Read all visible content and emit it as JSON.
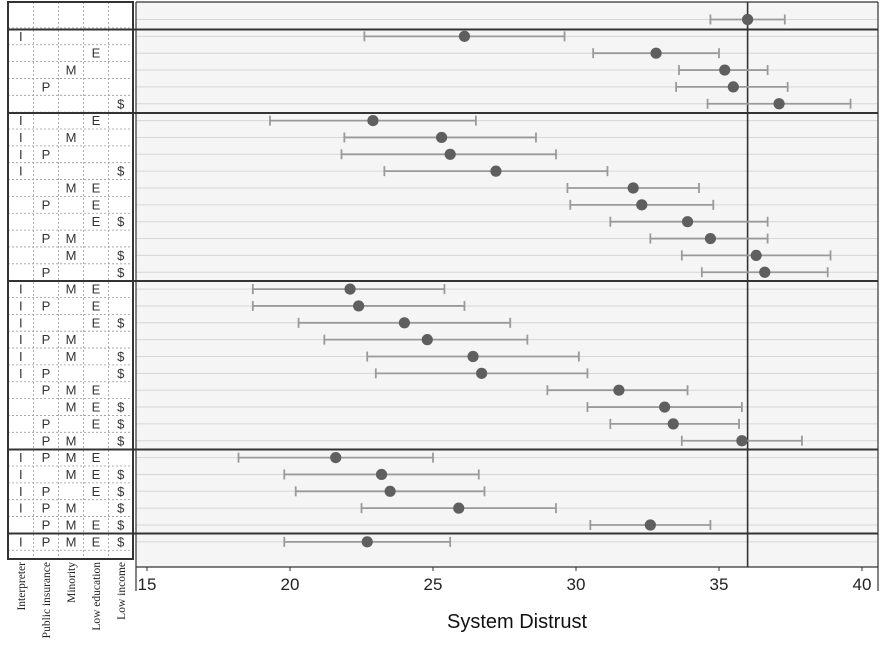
{
  "chart_data": {
    "type": "scatter",
    "subtype": "forest-plot-with-error-bars",
    "xlabel": "System Distrust",
    "xlim": [
      14.5,
      40.5
    ],
    "xticks": [
      15,
      20,
      25,
      30,
      35,
      40
    ],
    "reference_line": 36,
    "grid": "horizontal lines per row",
    "factor_columns": [
      {
        "key": "I",
        "label": "Interpreter"
      },
      {
        "key": "P",
        "label": "Public insurance"
      },
      {
        "key": "M",
        "label": "Minority"
      },
      {
        "key": "E",
        "label": "Low education"
      },
      {
        "key": "$",
        "label": "Low income"
      }
    ],
    "groups": [
      {
        "rows": [
          {
            "factors": [],
            "mean": 36.0,
            "lo": 34.7,
            "hi": 37.3
          }
        ]
      },
      {
        "rows": [
          {
            "factors": [
              "I"
            ],
            "mean": 26.1,
            "lo": 22.6,
            "hi": 29.6
          },
          {
            "factors": [
              "E"
            ],
            "mean": 32.8,
            "lo": 30.6,
            "hi": 35.0
          },
          {
            "factors": [
              "M"
            ],
            "mean": 35.2,
            "lo": 33.6,
            "hi": 36.7
          },
          {
            "factors": [
              "P"
            ],
            "mean": 35.5,
            "lo": 33.5,
            "hi": 37.4
          },
          {
            "factors": [
              "$"
            ],
            "mean": 37.1,
            "lo": 34.6,
            "hi": 39.6
          }
        ]
      },
      {
        "rows": [
          {
            "factors": [
              "I",
              "E"
            ],
            "mean": 22.9,
            "lo": 19.3,
            "hi": 26.5
          },
          {
            "factors": [
              "I",
              "M"
            ],
            "mean": 25.3,
            "lo": 21.9,
            "hi": 28.6
          },
          {
            "factors": [
              "I",
              "P"
            ],
            "mean": 25.6,
            "lo": 21.8,
            "hi": 29.3
          },
          {
            "factors": [
              "I",
              "$"
            ],
            "mean": 27.2,
            "lo": 23.3,
            "hi": 31.1
          },
          {
            "factors": [
              "M",
              "E"
            ],
            "mean": 32.0,
            "lo": 29.7,
            "hi": 34.3
          },
          {
            "factors": [
              "P",
              "E"
            ],
            "mean": 32.3,
            "lo": 29.8,
            "hi": 34.8
          },
          {
            "factors": [
              "E",
              "$"
            ],
            "mean": 33.9,
            "lo": 31.2,
            "hi": 36.7
          },
          {
            "factors": [
              "P",
              "M"
            ],
            "mean": 34.7,
            "lo": 32.6,
            "hi": 36.7
          },
          {
            "factors": [
              "M",
              "$"
            ],
            "mean": 36.3,
            "lo": 33.7,
            "hi": 38.9
          },
          {
            "factors": [
              "P",
              "$"
            ],
            "mean": 36.6,
            "lo": 34.4,
            "hi": 38.8
          }
        ]
      },
      {
        "rows": [
          {
            "factors": [
              "I",
              "M",
              "E"
            ],
            "mean": 22.1,
            "lo": 18.7,
            "hi": 25.4
          },
          {
            "factors": [
              "I",
              "P",
              "E"
            ],
            "mean": 22.4,
            "lo": 18.7,
            "hi": 26.1
          },
          {
            "factors": [
              "I",
              "E",
              "$"
            ],
            "mean": 24.0,
            "lo": 20.3,
            "hi": 27.7
          },
          {
            "factors": [
              "I",
              "P",
              "M"
            ],
            "mean": 24.8,
            "lo": 21.2,
            "hi": 28.3
          },
          {
            "factors": [
              "I",
              "M",
              "$"
            ],
            "mean": 26.4,
            "lo": 22.7,
            "hi": 30.1
          },
          {
            "factors": [
              "I",
              "P",
              "$"
            ],
            "mean": 26.7,
            "lo": 23.0,
            "hi": 30.4
          },
          {
            "factors": [
              "P",
              "M",
              "E"
            ],
            "mean": 31.5,
            "lo": 29.0,
            "hi": 33.9
          },
          {
            "factors": [
              "M",
              "E",
              "$"
            ],
            "mean": 33.1,
            "lo": 30.4,
            "hi": 35.8
          },
          {
            "factors": [
              "P",
              "E",
              "$"
            ],
            "mean": 33.4,
            "lo": 31.2,
            "hi": 35.7
          },
          {
            "factors": [
              "P",
              "M",
              "$"
            ],
            "mean": 35.8,
            "lo": 33.7,
            "hi": 37.9
          }
        ]
      },
      {
        "rows": [
          {
            "factors": [
              "I",
              "P",
              "M",
              "E"
            ],
            "mean": 21.6,
            "lo": 18.2,
            "hi": 25.0
          },
          {
            "factors": [
              "I",
              "M",
              "E",
              "$"
            ],
            "mean": 23.2,
            "lo": 19.8,
            "hi": 26.6
          },
          {
            "factors": [
              "I",
              "P",
              "E",
              "$"
            ],
            "mean": 23.5,
            "lo": 20.2,
            "hi": 26.8
          },
          {
            "factors": [
              "I",
              "P",
              "M",
              "$"
            ],
            "mean": 25.9,
            "lo": 22.5,
            "hi": 29.3
          },
          {
            "factors": [
              "P",
              "M",
              "E",
              "$"
            ],
            "mean": 32.6,
            "lo": 30.5,
            "hi": 34.7
          }
        ]
      },
      {
        "rows": [
          {
            "factors": [
              "I",
              "P",
              "M",
              "E",
              "$"
            ],
            "mean": 22.7,
            "lo": 19.8,
            "hi": 25.6
          }
        ]
      }
    ],
    "colors": {
      "point": "#5f5f5f",
      "error_bar": "#9a9a9a",
      "gridline": "#d6d6d6",
      "border": "#333333"
    }
  }
}
